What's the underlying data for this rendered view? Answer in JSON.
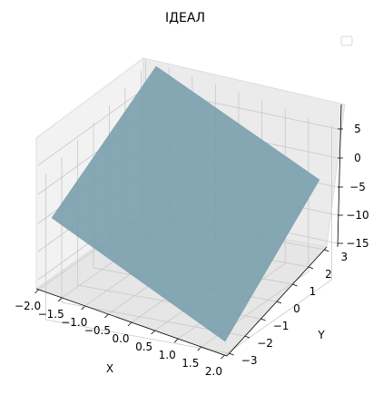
{
  "chart_data": {
    "type": "surface",
    "title": "ІДЕАЛ",
    "xlabel": "X",
    "ylabel": "Y",
    "zlabel": "",
    "xlim": [
      -2.0,
      2.0
    ],
    "ylim": [
      -3.0,
      3.0
    ],
    "zlim": [
      -15,
      7
    ],
    "xticks": [
      "−2.0",
      "−1.5",
      "−1.0",
      "−0.5",
      "0.0",
      "0.5",
      "1.0",
      "1.5",
      "2.0"
    ],
    "yticks": [
      "−3",
      "−2",
      "−1",
      "0",
      "1",
      "2",
      "3"
    ],
    "zticks": [
      "−15",
      "−10",
      "−5",
      "0",
      "5"
    ],
    "surface_corners": [
      {
        "x": -2.0,
        "y": -3.0,
        "z": -6.0
      },
      {
        "x": 2.0,
        "y": -3.0,
        "z": -16.0
      },
      {
        "x": 2.0,
        "y": 3.0,
        "z": -2.0
      },
      {
        "x": -2.0,
        "y": 3.0,
        "z": 8.0
      }
    ],
    "surface_color": "#7a9fad",
    "grid": true,
    "legend": "top-right (empty)"
  }
}
